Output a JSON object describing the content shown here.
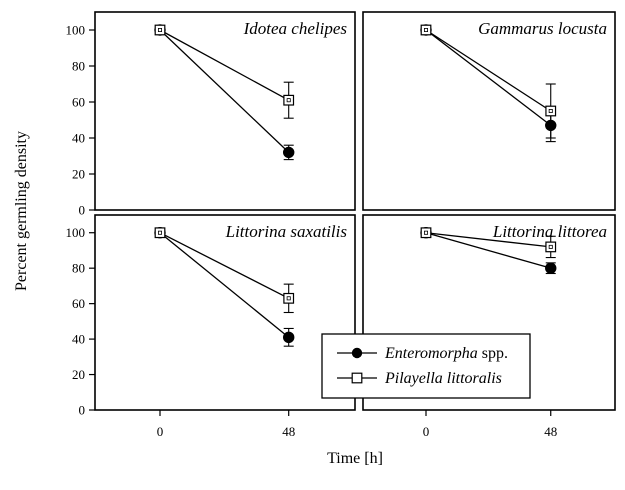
{
  "chart_data": {
    "type": "line",
    "ylabel": "Percent germling density",
    "xlabel": "Time [h]",
    "x": [
      0,
      48
    ],
    "ylim": [
      0,
      110
    ],
    "yticks": [
      0,
      20,
      40,
      60,
      80,
      100
    ],
    "legend": {
      "placement": "bottom-right",
      "entries": [
        {
          "italic": "Enteromorpha",
          "plain": " spp.",
          "marker": "filled-circle"
        },
        {
          "italic": "Pilayella littoralis",
          "plain": "",
          "marker": "open-square"
        }
      ]
    },
    "panels": [
      {
        "title": "Idotea chelipes",
        "series": [
          {
            "name": "Enteromorpha spp.",
            "marker": "filled-circle",
            "values": [
              100,
              32
            ],
            "error": [
              0,
              4
            ]
          },
          {
            "name": "Pilayella littoralis",
            "marker": "open-square",
            "values": [
              100,
              61
            ],
            "error": [
              0,
              10
            ]
          }
        ]
      },
      {
        "title": "Gammarus locusta",
        "series": [
          {
            "name": "Enteromorpha spp.",
            "marker": "filled-circle",
            "values": [
              100,
              47
            ],
            "error": [
              0,
              9
            ]
          },
          {
            "name": "Pilayella littoralis",
            "marker": "open-square",
            "values": [
              100,
              55
            ],
            "error": [
              0,
              15
            ]
          }
        ]
      },
      {
        "title": "Littorina saxatilis",
        "series": [
          {
            "name": "Enteromorpha spp.",
            "marker": "filled-circle",
            "values": [
              100,
              41
            ],
            "error": [
              0,
              5
            ]
          },
          {
            "name": "Pilayella littoralis",
            "marker": "open-square",
            "values": [
              100,
              63
            ],
            "error": [
              0,
              8
            ]
          }
        ]
      },
      {
        "title": "Littorina littorea",
        "series": [
          {
            "name": "Enteromorpha spp.",
            "marker": "filled-circle",
            "values": [
              100,
              80
            ],
            "error": [
              0,
              3
            ]
          },
          {
            "name": "Pilayella littoralis",
            "marker": "open-square",
            "values": [
              100,
              92
            ],
            "error": [
              0,
              6
            ]
          }
        ]
      }
    ]
  }
}
